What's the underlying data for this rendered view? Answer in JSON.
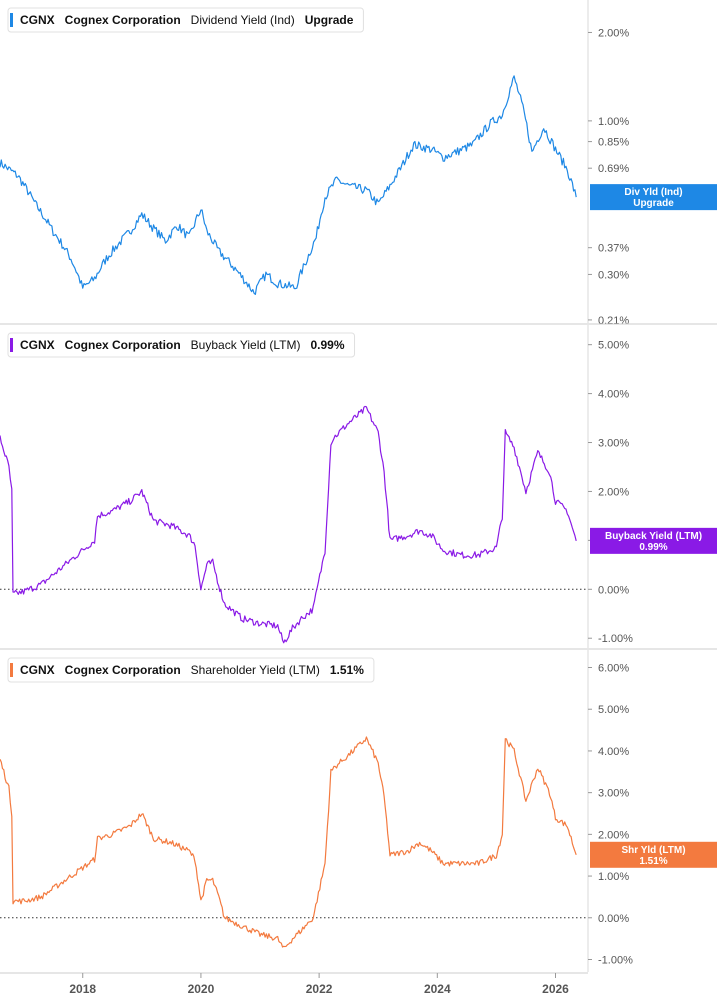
{
  "colors": {
    "div": "#1e88e5",
    "buyback": "#8a1ae6",
    "shr": "#f37a3f",
    "axis": "#555555",
    "divider": "#cccccc",
    "zero": "#333333"
  },
  "chart_data": [
    {
      "type": "line",
      "ticker": "CGNX",
      "company": "Cognex Corporation",
      "metric": "Dividend Yield (Ind)",
      "title_value": "Upgrade",
      "scale": "log",
      "yticks": [
        "2.00%",
        "1.00%",
        "0.85%",
        "0.69%",
        "0.37%",
        "0.30%",
        "0.21%"
      ],
      "yticks_num": [
        2.0,
        1.0,
        0.85,
        0.69,
        0.37,
        0.3,
        0.21
      ],
      "ylim": [
        0.205,
        2.5
      ],
      "badge": [
        "Div Yld (Ind)",
        "Upgrade"
      ],
      "series": [
        {
          "x": [
            2016.6,
            2016.9,
            2017.2,
            2017.5,
            2017.8,
            2018.0,
            2018.2,
            2018.4,
            2018.6,
            2018.8,
            2019.0,
            2019.2,
            2019.4,
            2019.6,
            2019.8,
            2020.0,
            2020.1,
            2020.3,
            2020.6,
            2020.9,
            2021.1,
            2021.3,
            2021.6,
            2021.8,
            2021.95,
            2022.1,
            2022.3,
            2022.5,
            2022.8,
            2023.0,
            2023.2,
            2023.4,
            2023.6,
            2023.9,
            2024.1,
            2024.3,
            2024.6,
            2024.9,
            2025.1,
            2025.3,
            2025.45,
            2025.6,
            2025.8,
            2026.0,
            2026.2,
            2026.35
          ],
          "y": [
            0.72,
            0.65,
            0.52,
            0.42,
            0.34,
            0.27,
            0.29,
            0.34,
            0.38,
            0.42,
            0.48,
            0.43,
            0.39,
            0.44,
            0.4,
            0.5,
            0.42,
            0.36,
            0.31,
            0.26,
            0.3,
            0.28,
            0.27,
            0.34,
            0.4,
            0.55,
            0.63,
            0.6,
            0.58,
            0.52,
            0.6,
            0.7,
            0.83,
            0.8,
            0.75,
            0.78,
            0.83,
            0.98,
            1.05,
            1.4,
            1.1,
            0.78,
            0.95,
            0.8,
            0.68,
            0.55
          ]
        }
      ]
    },
    {
      "type": "line",
      "ticker": "CGNX",
      "company": "Cognex Corporation",
      "metric": "Buyback Yield (LTM)",
      "title_value": "0.99%",
      "scale": "linear",
      "yticks": [
        "5.00%",
        "4.00%",
        "3.00%",
        "2.00%",
        "1.00%",
        "0.00%",
        "-1.00%"
      ],
      "yticks_num": [
        5,
        4,
        3,
        2,
        1,
        0,
        -1
      ],
      "ylim": [
        -1.2,
        5.3
      ],
      "badge": [
        "Buyback Yield (LTM)",
        "0.99%"
      ],
      "series": [
        {
          "x": [
            2016.6,
            2016.75,
            2016.8,
            2016.82,
            2017.0,
            2017.3,
            2017.6,
            2017.8,
            2018.0,
            2018.2,
            2018.25,
            2018.5,
            2018.8,
            2019.0,
            2019.1,
            2019.2,
            2019.5,
            2019.8,
            2019.9,
            2020.0,
            2020.1,
            2020.2,
            2020.3,
            2020.4,
            2020.7,
            2021.0,
            2021.3,
            2021.4,
            2021.55,
            2021.7,
            2021.9,
            2022.1,
            2022.2,
            2022.25,
            2022.5,
            2022.8,
            2023.0,
            2023.1,
            2023.2,
            2023.5,
            2023.7,
            2023.9,
            2024.1,
            2024.4,
            2024.7,
            2025.0,
            2025.1,
            2025.15,
            2025.3,
            2025.5,
            2025.7,
            2025.9,
            2026.0,
            2026.2,
            2026.35
          ],
          "y": [
            3.1,
            2.5,
            2.0,
            -0.1,
            -0.05,
            0.1,
            0.4,
            0.6,
            0.8,
            1.0,
            1.5,
            1.6,
            1.8,
            2.0,
            1.7,
            1.4,
            1.3,
            1.1,
            0.9,
            0.0,
            0.5,
            0.55,
            0.1,
            -0.3,
            -0.6,
            -0.7,
            -0.75,
            -1.1,
            -0.8,
            -0.6,
            -0.4,
            0.8,
            3.0,
            3.1,
            3.4,
            3.7,
            3.2,
            2.4,
            1.0,
            1.1,
            1.2,
            1.1,
            0.8,
            0.7,
            0.7,
            0.85,
            1.5,
            3.2,
            2.9,
            2.0,
            2.8,
            2.4,
            1.8,
            1.6,
            0.99
          ]
        }
      ]
    },
    {
      "type": "line",
      "ticker": "CGNX",
      "company": "Cognex Corporation",
      "metric": "Shareholder Yield (LTM)",
      "title_value": "1.51%",
      "scale": "linear",
      "yticks": [
        "6.00%",
        "5.00%",
        "4.00%",
        "3.00%",
        "2.00%",
        "1.00%",
        "0.00%",
        "-1.00%"
      ],
      "yticks_num": [
        6,
        5,
        4,
        3,
        2,
        1,
        0,
        -1
      ],
      "ylim": [
        -1.3,
        6.3
      ],
      "badge": [
        "Shr Yld (LTM)",
        "1.51%"
      ],
      "xticks": [
        "2018",
        "2020",
        "2022",
        "2024",
        "2026"
      ],
      "xticks_num": [
        2018,
        2020,
        2022,
        2024,
        2026
      ],
      "xlim": [
        2016.6,
        2026.55
      ],
      "series": [
        {
          "x": [
            2016.6,
            2016.75,
            2016.8,
            2016.82,
            2017.0,
            2017.3,
            2017.6,
            2017.8,
            2018.0,
            2018.2,
            2018.25,
            2018.5,
            2018.8,
            2019.0,
            2019.1,
            2019.2,
            2019.5,
            2019.8,
            2019.9,
            2020.0,
            2020.1,
            2020.2,
            2020.3,
            2020.4,
            2020.7,
            2021.0,
            2021.3,
            2021.4,
            2021.55,
            2021.7,
            2021.9,
            2022.1,
            2022.2,
            2022.25,
            2022.5,
            2022.8,
            2023.0,
            2023.1,
            2023.2,
            2023.5,
            2023.7,
            2023.9,
            2024.1,
            2024.4,
            2024.7,
            2025.0,
            2025.1,
            2025.15,
            2025.3,
            2025.5,
            2025.7,
            2025.9,
            2026.0,
            2026.2,
            2026.35
          ],
          "y": [
            3.8,
            3.1,
            2.5,
            0.4,
            0.4,
            0.5,
            0.8,
            1.0,
            1.2,
            1.4,
            1.9,
            2.0,
            2.2,
            2.5,
            2.2,
            1.9,
            1.8,
            1.6,
            1.4,
            0.4,
            0.9,
            0.9,
            0.5,
            0.0,
            -0.2,
            -0.4,
            -0.5,
            -0.75,
            -0.5,
            -0.3,
            0.0,
            1.3,
            3.5,
            3.6,
            3.9,
            4.3,
            3.7,
            2.9,
            1.5,
            1.6,
            1.8,
            1.6,
            1.3,
            1.3,
            1.3,
            1.5,
            2.0,
            4.3,
            4.0,
            2.8,
            3.6,
            3.0,
            2.4,
            2.2,
            1.51
          ]
        }
      ]
    }
  ]
}
